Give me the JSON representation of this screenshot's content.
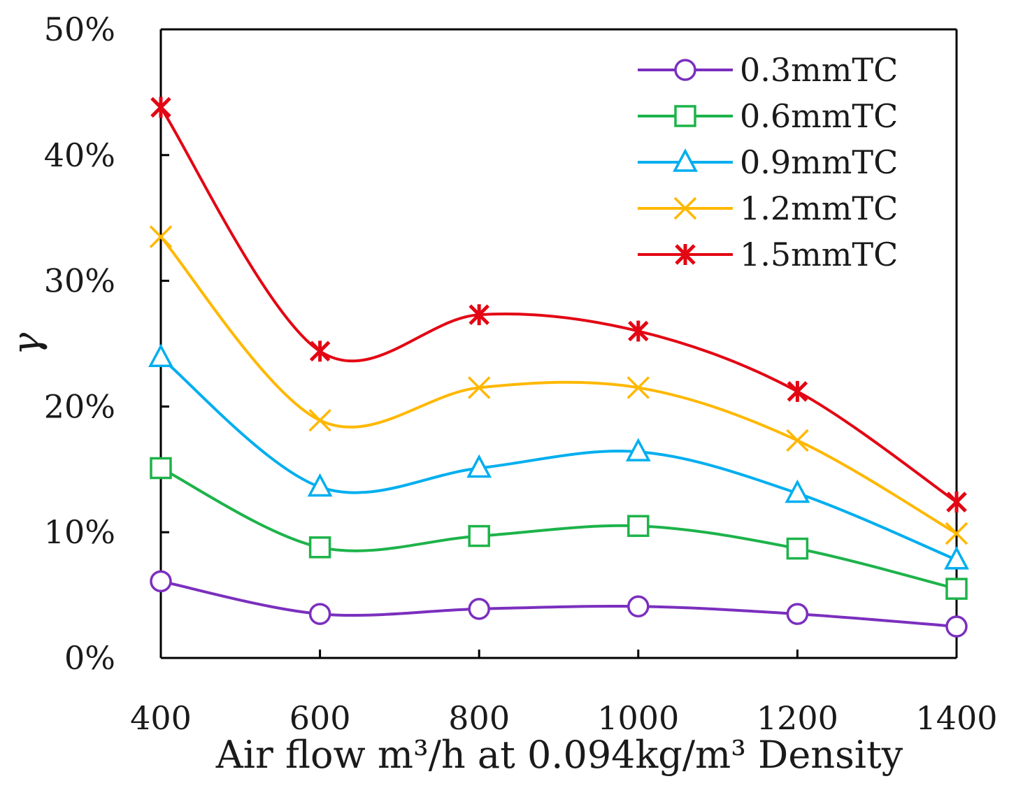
{
  "chart_data": {
    "type": "line",
    "title": "",
    "xlabel": "Air flow  m³/h at 0.094kg/m³ Density",
    "ylabel": "γ",
    "x": [
      400,
      600,
      800,
      1000,
      1200,
      1400
    ],
    "xlim": [
      400,
      1400
    ],
    "ylim": [
      0,
      50
    ],
    "xticks": [
      "400",
      "600",
      "800",
      "1000",
      "1200",
      "1400"
    ],
    "yticks": [
      "0%",
      "10%",
      "20%",
      "30%",
      "40%",
      "50%"
    ],
    "grid": false,
    "legend_position": "top-right",
    "series": [
      {
        "name": "0.3mmTC",
        "color": "#7b2fbe",
        "marker": "circle",
        "values": [
          6.1,
          3.5,
          3.9,
          4.1,
          3.5,
          2.5
        ]
      },
      {
        "name": "0.6mmTC",
        "color": "#1db34a",
        "marker": "square",
        "values": [
          15.1,
          8.8,
          9.7,
          10.5,
          8.7,
          5.5
        ]
      },
      {
        "name": "0.9mmTC",
        "color": "#00aeef",
        "marker": "triangle",
        "values": [
          23.9,
          13.6,
          15.1,
          16.4,
          13.1,
          7.8
        ]
      },
      {
        "name": "1.2mmTC",
        "color": "#ffb800",
        "marker": "x",
        "values": [
          33.5,
          18.9,
          21.5,
          21.5,
          17.3,
          9.9
        ]
      },
      {
        "name": "1.5mmTC",
        "color": "#e30613",
        "marker": "star",
        "values": [
          43.8,
          24.4,
          27.3,
          26.0,
          21.2,
          12.4
        ]
      }
    ]
  }
}
